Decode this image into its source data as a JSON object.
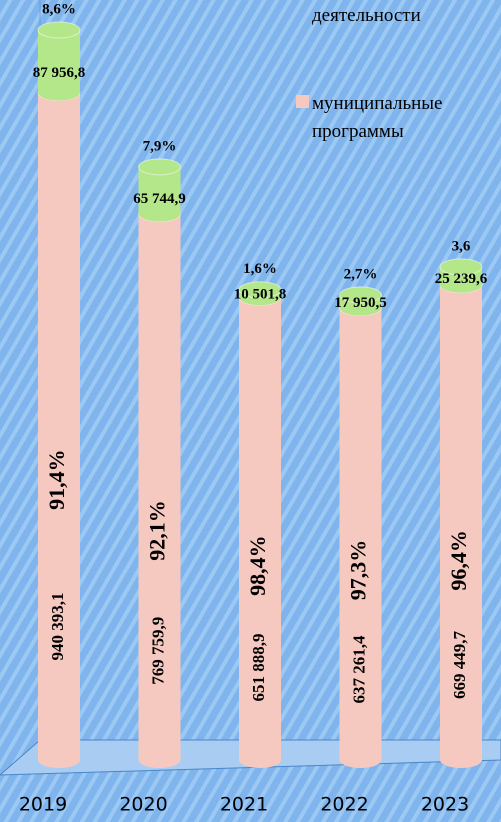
{
  "chart_data": {
    "type": "bar",
    "stacked": true,
    "categories": [
      "2019",
      "2020",
      "2021",
      "2022",
      "2023"
    ],
    "series": [
      {
        "name": "муниципальные программы",
        "color": "#f6c9c0",
        "values": [
          940393.1,
          769759.9,
          651888.9,
          637261.4,
          669449.7
        ],
        "value_labels": [
          "940 393,1",
          "769 759,9",
          "651 888,9",
          "637 261,4",
          "669 449,7"
        ],
        "share_labels": [
          "91,4%",
          "92,1%",
          "98,4%",
          "97,3%",
          "96,4%"
        ]
      },
      {
        "name": "деятельности",
        "color": "#b4e68a",
        "values": [
          87956.8,
          65744.9,
          10501.8,
          17950.5,
          25239.6
        ],
        "value_labels": [
          "87 956,8",
          "65 744,9",
          "10 501,8",
          "17 950,5",
          "25 239,6"
        ],
        "share_labels": [
          "8,6%",
          "7,9%",
          "1,6%",
          "2,7%",
          "3,6"
        ]
      }
    ]
  }
}
